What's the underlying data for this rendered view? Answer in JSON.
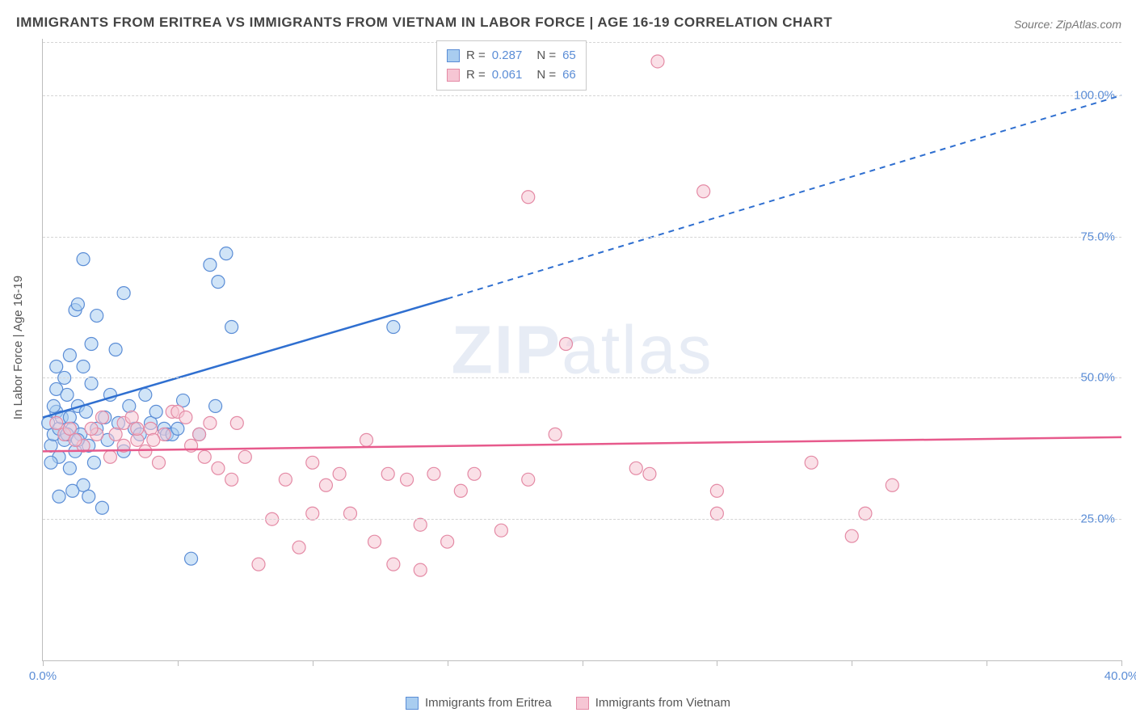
{
  "title": "IMMIGRANTS FROM ERITREA VS IMMIGRANTS FROM VIETNAM IN LABOR FORCE | AGE 16-19 CORRELATION CHART",
  "source": "Source: ZipAtlas.com",
  "y_axis_label": "In Labor Force | Age 16-19",
  "watermark_a": "ZIP",
  "watermark_b": "atlas",
  "chart": {
    "type": "scatter",
    "xlim": [
      0,
      40
    ],
    "ylim": [
      0,
      110
    ],
    "x_ticks": [
      0,
      5,
      10,
      15,
      20,
      25,
      30,
      35,
      40
    ],
    "x_tick_labels": {
      "0": "0.0%",
      "40": "40.0%"
    },
    "y_ticks": [
      25,
      50,
      75,
      100
    ],
    "y_tick_labels": {
      "25": "25.0%",
      "50": "50.0%",
      "75": "75.0%",
      "100": "100.0%"
    },
    "background_color": "#ffffff",
    "grid_color": "#d5d5d5",
    "marker_radius": 8,
    "marker_opacity": 0.55,
    "series": [
      {
        "name": "Immigrants from Eritrea",
        "color_fill": "#a9cdf0",
        "color_stroke": "#5b8dd6",
        "line_color": "#2f6fd0",
        "R": "0.287",
        "N": "65",
        "regression": {
          "x1": 0,
          "y1": 43,
          "x2": 15,
          "y2": 64,
          "x3": 40,
          "y3": 100,
          "dash_from_x": 15
        },
        "points": [
          [
            0.2,
            42
          ],
          [
            0.3,
            38
          ],
          [
            0.4,
            40
          ],
          [
            0.5,
            44
          ],
          [
            0.5,
            48
          ],
          [
            0.6,
            36
          ],
          [
            0.6,
            41
          ],
          [
            0.7,
            43
          ],
          [
            0.8,
            39
          ],
          [
            0.8,
            50
          ],
          [
            0.9,
            47
          ],
          [
            1.0,
            34
          ],
          [
            1.0,
            43
          ],
          [
            1.0,
            54
          ],
          [
            1.1,
            41
          ],
          [
            1.2,
            37
          ],
          [
            1.2,
            62
          ],
          [
            1.3,
            45
          ],
          [
            1.3,
            63
          ],
          [
            1.4,
            40
          ],
          [
            1.5,
            31
          ],
          [
            1.5,
            52
          ],
          [
            1.5,
            71
          ],
          [
            1.6,
            44
          ],
          [
            1.7,
            38
          ],
          [
            1.8,
            49
          ],
          [
            1.8,
            56
          ],
          [
            1.9,
            35
          ],
          [
            2.0,
            41
          ],
          [
            2.0,
            61
          ],
          [
            2.2,
            27
          ],
          [
            2.3,
            43
          ],
          [
            2.4,
            39
          ],
          [
            2.5,
            47
          ],
          [
            2.7,
            55
          ],
          [
            2.8,
            42
          ],
          [
            3.0,
            37
          ],
          [
            3.0,
            65
          ],
          [
            3.2,
            45
          ],
          [
            3.4,
            41
          ],
          [
            3.6,
            40
          ],
          [
            3.8,
            47
          ],
          [
            4.0,
            42
          ],
          [
            4.2,
            44
          ],
          [
            4.5,
            41
          ],
          [
            4.6,
            40
          ],
          [
            4.8,
            40
          ],
          [
            5.0,
            41
          ],
          [
            5.2,
            46
          ],
          [
            5.5,
            18
          ],
          [
            5.8,
            40
          ],
          [
            6.2,
            70
          ],
          [
            6.4,
            45
          ],
          [
            6.5,
            67
          ],
          [
            6.8,
            72
          ],
          [
            7.0,
            59
          ],
          [
            0.6,
            29
          ],
          [
            1.1,
            30
          ],
          [
            1.7,
            29
          ],
          [
            0.3,
            35
          ],
          [
            0.4,
            45
          ],
          [
            0.5,
            52
          ],
          [
            0.9,
            40
          ],
          [
            1.3,
            39
          ],
          [
            13.0,
            59
          ]
        ]
      },
      {
        "name": "Immigrants from Vietnam",
        "color_fill": "#f6c6d4",
        "color_stroke": "#e48aa5",
        "line_color": "#e75a8c",
        "R": "0.061",
        "N": "66",
        "regression": {
          "x1": 0,
          "y1": 37,
          "x2": 40,
          "y2": 39.5
        },
        "points": [
          [
            0.5,
            42
          ],
          [
            0.8,
            40
          ],
          [
            1.0,
            41
          ],
          [
            1.5,
            38
          ],
          [
            2.0,
            40
          ],
          [
            2.2,
            43
          ],
          [
            2.5,
            36
          ],
          [
            3.0,
            38
          ],
          [
            3.0,
            42
          ],
          [
            3.3,
            43
          ],
          [
            3.5,
            39
          ],
          [
            3.8,
            37
          ],
          [
            4.0,
            41
          ],
          [
            4.3,
            35
          ],
          [
            4.5,
            40
          ],
          [
            4.8,
            44
          ],
          [
            5.0,
            44
          ],
          [
            5.3,
            43
          ],
          [
            5.5,
            38
          ],
          [
            5.8,
            40
          ],
          [
            6.0,
            36
          ],
          [
            6.5,
            34
          ],
          [
            7.0,
            32
          ],
          [
            7.2,
            42
          ],
          [
            7.5,
            36
          ],
          [
            8.0,
            17
          ],
          [
            8.5,
            25
          ],
          [
            9.0,
            32
          ],
          [
            9.5,
            20
          ],
          [
            10.0,
            35
          ],
          [
            10.0,
            26
          ],
          [
            10.5,
            31
          ],
          [
            11.0,
            33
          ],
          [
            11.4,
            26
          ],
          [
            12.0,
            39
          ],
          [
            12.3,
            21
          ],
          [
            12.8,
            33
          ],
          [
            13.0,
            17
          ],
          [
            13.5,
            32
          ],
          [
            14.0,
            24
          ],
          [
            14.0,
            16
          ],
          [
            14.5,
            33
          ],
          [
            15.0,
            21
          ],
          [
            15.5,
            30
          ],
          [
            16.0,
            33
          ],
          [
            17.0,
            23
          ],
          [
            18.0,
            82
          ],
          [
            18.0,
            32
          ],
          [
            19.0,
            40
          ],
          [
            19.4,
            56
          ],
          [
            22.0,
            34
          ],
          [
            22.5,
            33
          ],
          [
            22.8,
            106
          ],
          [
            24.5,
            83
          ],
          [
            25.0,
            26
          ],
          [
            25.0,
            30
          ],
          [
            28.5,
            35
          ],
          [
            30.0,
            22
          ],
          [
            30.5,
            26
          ],
          [
            31.5,
            31
          ],
          [
            1.2,
            39
          ],
          [
            1.8,
            41
          ],
          [
            2.7,
            40
          ],
          [
            3.5,
            41
          ],
          [
            4.1,
            39
          ],
          [
            6.2,
            42
          ]
        ]
      }
    ]
  },
  "legend_bottom": [
    {
      "label": "Immigrants from Eritrea",
      "fill": "#a9cdf0",
      "stroke": "#5b8dd6"
    },
    {
      "label": "Immigrants from Vietnam",
      "fill": "#f6c6d4",
      "stroke": "#e48aa5"
    }
  ]
}
